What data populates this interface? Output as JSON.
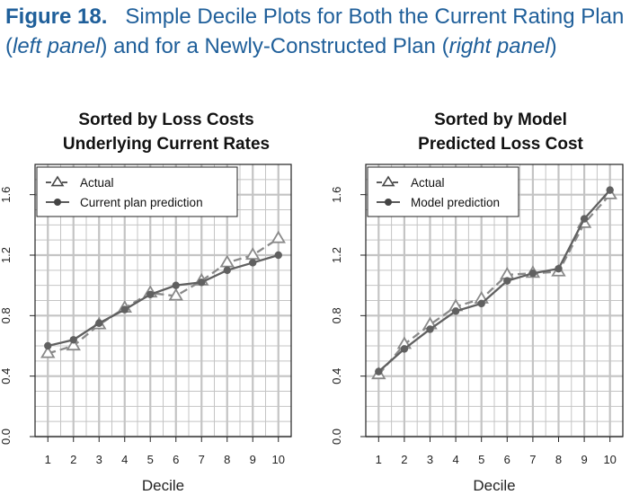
{
  "figure": {
    "label": "Figure 18.",
    "caption_part1": "Simple Decile Plots for Both the Current Rating Plan (",
    "caption_italic1": "left panel",
    "caption_part2": ") and for a Newly-Constructed Plan (",
    "caption_italic2": "right panel",
    "caption_part3": ")"
  },
  "colors": {
    "caption": "#1f5f9a",
    "actual": "#8a8a8a",
    "prediction": "#606060",
    "grid": "#c4c4c4"
  },
  "chart_data": [
    {
      "type": "line",
      "title_line1": "Sorted by Loss Costs",
      "title_line2": "Underlying Current Rates",
      "xlabel": "Decile",
      "ylabel": "",
      "x": [
        1,
        2,
        3,
        4,
        5,
        6,
        7,
        8,
        9,
        10
      ],
      "xlim": [
        0.5,
        10.5
      ],
      "ylim": [
        0.0,
        1.8
      ],
      "yticks": [
        0.0,
        0.4,
        0.8,
        1.2,
        1.6
      ],
      "ytick_labels": [
        "0.0",
        "0.4",
        "0.8",
        "1.2",
        "1.6"
      ],
      "grid": true,
      "legend_position": "top-left",
      "series": [
        {
          "name": "Actual",
          "marker": "triangle",
          "style": "dashed",
          "values": [
            0.55,
            0.6,
            0.74,
            0.85,
            0.95,
            0.93,
            1.03,
            1.15,
            1.2,
            1.31
          ]
        },
        {
          "name": "Current plan prediction",
          "marker": "circle",
          "style": "solid",
          "values": [
            0.6,
            0.64,
            0.75,
            0.84,
            0.94,
            1.0,
            1.02,
            1.1,
            1.15,
            1.2
          ]
        }
      ]
    },
    {
      "type": "line",
      "title_line1": "Sorted by Model",
      "title_line2": "Predicted Loss Cost",
      "xlabel": "Decile",
      "ylabel": "",
      "x": [
        1,
        2,
        3,
        4,
        5,
        6,
        7,
        8,
        9,
        10
      ],
      "xlim": [
        0.5,
        10.5
      ],
      "ylim": [
        0.0,
        1.8
      ],
      "yticks": [
        0.0,
        0.4,
        0.8,
        1.2,
        1.6
      ],
      "ytick_labels": [
        "0.0",
        "0.4",
        "0.8",
        "1.2",
        "1.6"
      ],
      "grid": true,
      "legend_position": "top-left",
      "series": [
        {
          "name": "Actual",
          "marker": "triangle",
          "style": "dashed",
          "values": [
            0.41,
            0.61,
            0.74,
            0.86,
            0.91,
            1.07,
            1.08,
            1.09,
            1.41,
            1.6
          ]
        },
        {
          "name": "Model prediction",
          "marker": "circle",
          "style": "solid",
          "values": [
            0.43,
            0.58,
            0.71,
            0.83,
            0.88,
            1.03,
            1.08,
            1.11,
            1.44,
            1.63
          ]
        }
      ]
    }
  ]
}
